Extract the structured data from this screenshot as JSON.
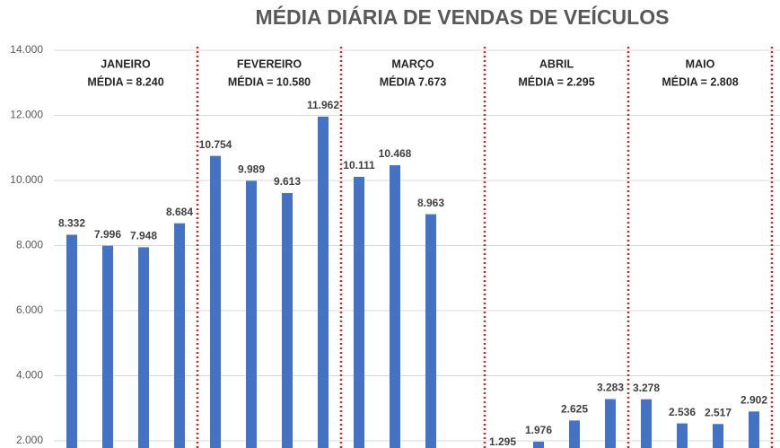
{
  "chart_data": {
    "type": "bar",
    "title": "MÉDIA DIÁRIA DE VENDAS DE VEÍCULOS",
    "categories": [
      null,
      null,
      null,
      null,
      null,
      null,
      null,
      null,
      null,
      null,
      null,
      null,
      null,
      null,
      null,
      null,
      null,
      null,
      null,
      null
    ],
    "values": [
      8332,
      7996,
      7948,
      8684,
      10754,
      9989,
      9613,
      11962,
      10111,
      10468,
      8963,
      null,
      1295,
      1976,
      2625,
      3283,
      3278,
      2536,
      2517,
      2902
    ],
    "value_labels": [
      "8.332",
      "7.996",
      "7.948",
      "8.684",
      "10.754",
      "9.989",
      "9.613",
      "11.962",
      "10.111",
      "10.468",
      "8.963",
      null,
      "1.295",
      "1.976",
      "2.625",
      "3.283",
      "3.278",
      "2.536",
      "2.517",
      "2.902"
    ],
    "color": "#4472c4",
    "ylim": [
      1780,
      14000
    ],
    "yticks": [
      {
        "value": 2000,
        "label": "2.000"
      },
      {
        "value": 4000,
        "label": "4.000"
      },
      {
        "value": 6000,
        "label": "6.000"
      },
      {
        "value": 8000,
        "label": "8.000"
      },
      {
        "value": 10000,
        "label": "10.000"
      },
      {
        "value": 12000,
        "label": "12.000"
      },
      {
        "value": 14000,
        "label": "14.000"
      }
    ],
    "grid": true,
    "annotations": [
      [
        "JANEIRO",
        "MÉDIA = 8.240"
      ],
      [
        "FEVEREIRO",
        "MÉDIA = 10.580"
      ],
      [
        "MARÇO",
        "MÉDIA 7.673"
      ],
      [
        "ABRIL",
        "MÉDIA = 2.295"
      ],
      [
        "MAIO",
        "MÉDIA = 2.808"
      ]
    ]
  }
}
